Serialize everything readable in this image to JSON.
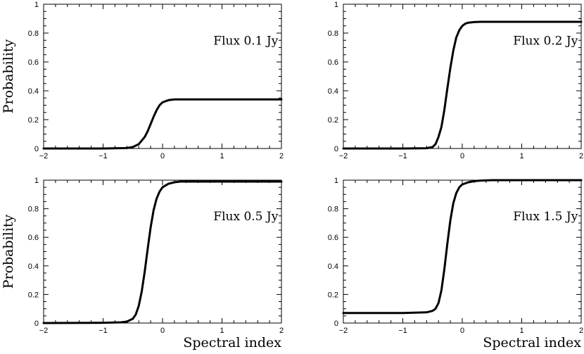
{
  "chart_data": [
    {
      "type": "line",
      "annotation": "Flux 0.1 Jy",
      "xlabel": "",
      "ylabel": "Probability",
      "xlim": [
        -2,
        2
      ],
      "ylim": [
        0,
        1
      ],
      "xticks": [
        "−2",
        "−1",
        "0",
        "1",
        "2"
      ],
      "yticks": [
        "0",
        "0.2",
        "0.4",
        "0.6",
        "0.8",
        "1"
      ],
      "grid": false,
      "series": [
        {
          "x": [
            -2,
            -1,
            -0.6,
            -0.5,
            -0.4,
            -0.3,
            -0.25,
            -0.2,
            -0.15,
            -0.1,
            -0.05,
            0,
            0.1,
            0.2,
            0.3,
            0.5,
            1,
            2
          ],
          "y": [
            0,
            0,
            0.003,
            0.01,
            0.03,
            0.08,
            0.12,
            0.17,
            0.22,
            0.265,
            0.3,
            0.32,
            0.335,
            0.34,
            0.34,
            0.34,
            0.34,
            0.34
          ]
        }
      ]
    },
    {
      "type": "line",
      "annotation": "Flux 0.2 Jy",
      "xlabel": "",
      "ylabel": "",
      "xlim": [
        -2,
        2
      ],
      "ylim": [
        0,
        1
      ],
      "xticks": [
        "−2",
        "−1",
        "0",
        "1",
        "2"
      ],
      "yticks": [
        "0",
        "0.2",
        "0.4",
        "0.6",
        "0.8",
        "1"
      ],
      "grid": false,
      "series": [
        {
          "x": [
            -2,
            -1,
            -0.6,
            -0.5,
            -0.45,
            -0.4,
            -0.35,
            -0.3,
            -0.25,
            -0.2,
            -0.15,
            -0.1,
            -0.05,
            0,
            0.05,
            0.1,
            0.2,
            0.3,
            0.5,
            1,
            2
          ],
          "y": [
            0,
            0,
            0.002,
            0.01,
            0.03,
            0.08,
            0.15,
            0.27,
            0.42,
            0.56,
            0.68,
            0.77,
            0.82,
            0.85,
            0.865,
            0.872,
            0.876,
            0.878,
            0.878,
            0.878,
            0.878
          ]
        }
      ]
    },
    {
      "type": "line",
      "annotation": "Flux 0.5 Jy",
      "xlabel": "Spectral index",
      "ylabel": "Probability",
      "xlim": [
        -2,
        2
      ],
      "ylim": [
        0,
        1
      ],
      "xticks": [
        "−2",
        "−1",
        "0",
        "1",
        "2"
      ],
      "yticks": [
        "0",
        "0.2",
        "0.4",
        "0.6",
        "0.8",
        "1"
      ],
      "grid": false,
      "series": [
        {
          "x": [
            -2,
            -1,
            -0.7,
            -0.6,
            -0.5,
            -0.45,
            -0.4,
            -0.35,
            -0.3,
            -0.25,
            -0.2,
            -0.15,
            -0.1,
            -0.05,
            0,
            0.1,
            0.2,
            0.3,
            0.5,
            1,
            2
          ],
          "y": [
            0,
            0.002,
            0.005,
            0.01,
            0.03,
            0.06,
            0.12,
            0.22,
            0.36,
            0.52,
            0.67,
            0.79,
            0.87,
            0.92,
            0.95,
            0.975,
            0.985,
            0.99,
            0.99,
            0.99,
            0.99
          ]
        }
      ]
    },
    {
      "type": "line",
      "annotation": "Flux 1.5 Jy",
      "xlabel": "Spectral index",
      "ylabel": "",
      "xlim": [
        -2,
        2
      ],
      "ylim": [
        0,
        1
      ],
      "xticks": [
        "−2",
        "−1",
        "0",
        "1",
        "2"
      ],
      "yticks": [
        "0",
        "0.2",
        "0.4",
        "0.6",
        "0.8",
        "1"
      ],
      "grid": false,
      "series": [
        {
          "x": [
            -2,
            -1,
            -0.6,
            -0.5,
            -0.45,
            -0.4,
            -0.35,
            -0.3,
            -0.25,
            -0.2,
            -0.15,
            -0.1,
            -0.05,
            0,
            0.1,
            0.2,
            0.3,
            0.5,
            1,
            2
          ],
          "y": [
            0.07,
            0.07,
            0.075,
            0.085,
            0.1,
            0.14,
            0.23,
            0.38,
            0.56,
            0.72,
            0.84,
            0.91,
            0.95,
            0.97,
            0.985,
            0.993,
            0.997,
            1.0,
            1.0,
            1.0
          ]
        }
      ]
    }
  ]
}
